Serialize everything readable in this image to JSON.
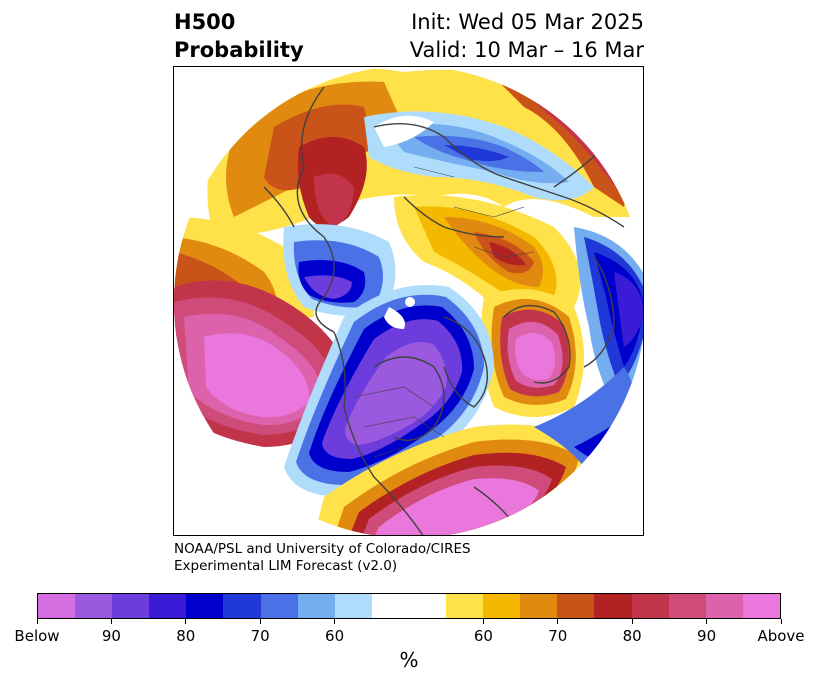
{
  "title": {
    "variable": "H500",
    "quantity": "Probability",
    "init": "Init: Wed 05 Mar 2025",
    "valid": "Valid: 10 Mar – 16 Mar"
  },
  "credit": {
    "line1": "NOAA/PSL and University of Colorado/CIRES",
    "line2": "Experimental LIM Forecast (v2.0)"
  },
  "colorbar": {
    "unit": "%",
    "below_colors": [
      "#d56ee0",
      "#9b59e0",
      "#6c3cdc",
      "#3a1cd6",
      "#0000cd",
      "#2138d9",
      "#4a72e6",
      "#74adf0",
      "#aedcfa"
    ],
    "neutral_color": "#ffffff",
    "above_colors": [
      "#ffe14a",
      "#f5b800",
      "#e08a10",
      "#c95318",
      "#b22222",
      "#c2344a",
      "#cf4b7a",
      "#dc62ab",
      "#ea78dc"
    ],
    "tick_labels": [
      "Below",
      "90",
      "80",
      "70",
      "60",
      "60",
      "70",
      "80",
      "90",
      "Above"
    ]
  },
  "map": {
    "projection": "north polar stereographic",
    "features": [
      "coastlines",
      "country borders",
      "state/province borders"
    ]
  }
}
